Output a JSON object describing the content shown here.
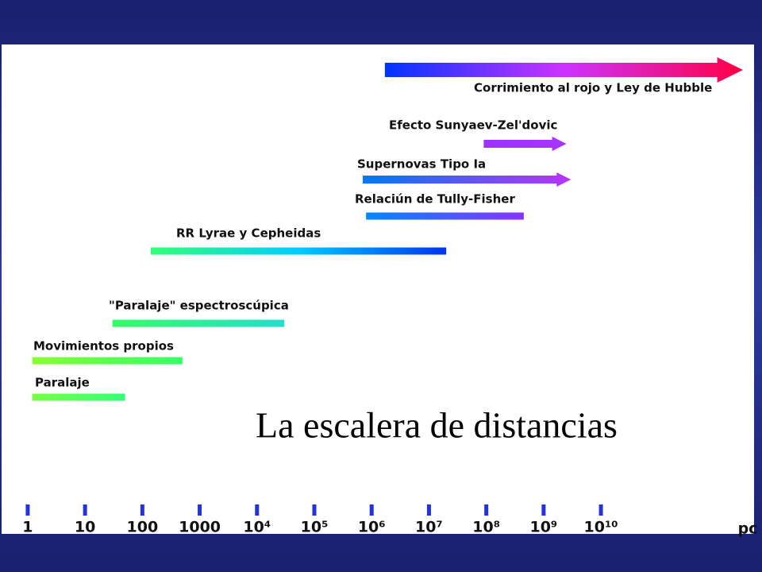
{
  "chart_data": {
    "type": "range",
    "title": "La escalera de distancias",
    "x_unit": "pc",
    "log_x": true,
    "xlim": [
      0.35,
      5000000000000
    ],
    "xticks": [
      1,
      10,
      100,
      1000,
      {
        "value": 10000,
        "label": "10⁴"
      },
      {
        "value": 100000,
        "label": "10⁵"
      },
      {
        "value": 1000000,
        "label": "10⁶"
      },
      {
        "value": 10000000,
        "label": "10⁷"
      },
      {
        "value": 100000000,
        "label": "10⁸"
      },
      {
        "value": 1000000000,
        "label": "10⁹"
      },
      {
        "value": 10000000000,
        "label": "10¹⁰"
      }
    ],
    "tick_color": "#2233dd",
    "series": [
      {
        "name": "Corrimiento al rojo y Ley de Hubble",
        "start": 1700000,
        "end": 3000000000000,
        "arrow": true,
        "colors": [
          "#0033ff",
          "#cc33ff",
          "#ff0044"
        ]
      },
      {
        "name": "Efecto Sunyaev-Zel'dovic",
        "start": 90000000,
        "end": 2500000000,
        "arrow": true,
        "colors": [
          "#9933ff",
          "#aa33ff"
        ]
      },
      {
        "name": "Supernovas Tipo Ia",
        "start": 700000,
        "end": 3000000000,
        "arrow": true,
        "colors": [
          "#0077ff",
          "#bb33ff"
        ]
      },
      {
        "name": "Relaciún de Tully-Fisher",
        "start": 800000,
        "end": 450000000,
        "arrow": false,
        "colors": [
          "#0088ff",
          "#8833ff"
        ]
      },
      {
        "name": "RR Lyrae y Cepheidas",
        "start": 140,
        "end": 20000000,
        "arrow": false,
        "colors": [
          "#33ff77",
          "#00ccff",
          "#0033ee"
        ]
      },
      {
        "name": "\"Paralaje\" espectroscúpica",
        "start": 30,
        "end": 30000,
        "arrow": false,
        "colors": [
          "#33ff66",
          "#22ddcc"
        ]
      },
      {
        "name": "Movimientos propios",
        "start": 1.2,
        "end": 500,
        "arrow": false,
        "colors": [
          "#88ff33",
          "#33ff66"
        ]
      },
      {
        "name": "Paralaje",
        "start": 1.2,
        "end": 50,
        "arrow": false,
        "colors": [
          "#77ff44",
          "#33ff77"
        ]
      }
    ]
  }
}
